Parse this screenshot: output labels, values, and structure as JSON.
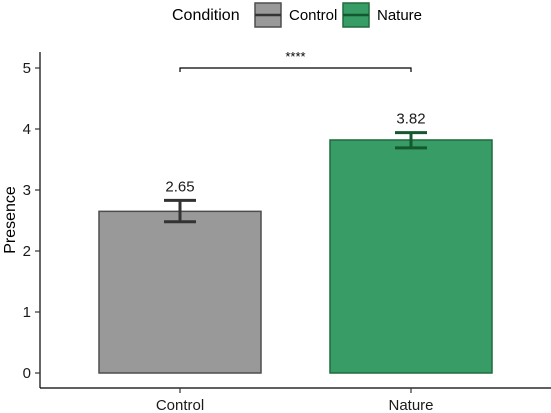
{
  "chart_data": {
    "type": "bar",
    "categories": [
      "Control",
      "Nature"
    ],
    "values": [
      2.65,
      3.82
    ],
    "error": [
      {
        "low": 2.48,
        "high": 2.83
      },
      {
        "low": 3.69,
        "high": 3.94
      }
    ],
    "value_labels": [
      "2.65",
      "3.82"
    ],
    "colors": [
      "#999999",
      "#379c66"
    ],
    "edge_colors": [
      "#4d4d4d",
      "#1e6b3d"
    ],
    "errorbar_colors": [
      "#333333",
      "#14582f"
    ],
    "ylabel": "Presence",
    "xlabel": "",
    "ylim": [
      0,
      5
    ],
    "yticks": [
      "0",
      "1",
      "2",
      "3",
      "4",
      "5"
    ],
    "legend": {
      "title": "Condition",
      "position": "top",
      "entries": [
        "Control",
        "Nature"
      ]
    },
    "significance": {
      "label": "****",
      "between": [
        "Control",
        "Nature"
      ],
      "y": 5.0
    },
    "grid": false
  }
}
